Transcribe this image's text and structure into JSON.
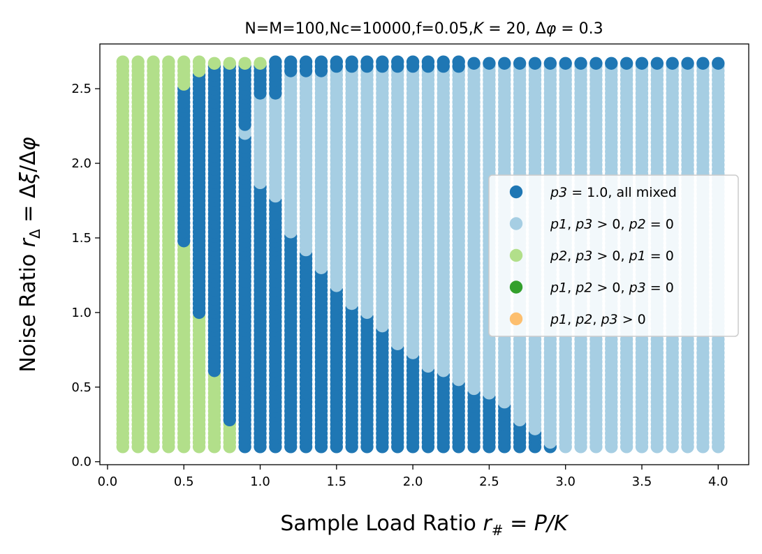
{
  "chart_data": {
    "type": "scatter",
    "title": "N=M=100,Nc=10000,f=0.05,K = 20, Δφ = 0.3",
    "xlabel": "Sample Load Ratio r# = P/K",
    "ylabel": "Noise Ratio rΔ = Δξ/Δφ",
    "xlim": [
      -0.05,
      4.2
    ],
    "ylim": [
      -0.02,
      2.8
    ],
    "xticks": [
      0.0,
      0.5,
      1.0,
      1.5,
      2.0,
      2.5,
      3.0,
      3.5,
      4.0
    ],
    "xtick_labels": [
      "0.0",
      "0.5",
      "1.0",
      "1.5",
      "2.0",
      "2.5",
      "3.0",
      "3.5",
      "4.0"
    ],
    "yticks": [
      0.0,
      0.5,
      1.0,
      1.5,
      2.0,
      2.5
    ],
    "ytick_labels": [
      "0.0",
      "0.5",
      "1.0",
      "1.5",
      "2.0",
      "2.5"
    ],
    "grid": false,
    "legend_position": "center-right",
    "x_values": {
      "start": 0.1,
      "stop": 4.0,
      "step": 0.1
    },
    "y_values": {
      "start": 0.1,
      "stop": 2.67,
      "step": 0.03
    },
    "series": [
      {
        "name": "p3 = 1.0, all mixed",
        "color": "#1f77b4"
      },
      {
        "name": "p1, p3 > 0, p2 = 0",
        "color": "#a6cee3"
      },
      {
        "name": "p2, p3 > 0, p1 = 0",
        "color": "#b2df8a"
      },
      {
        "name": "p1, p2 > 0, p3 = 0",
        "color": "#33a02c"
      },
      {
        "name": "p1, p2, p3 > 0",
        "color": "#fdbf6f"
      }
    ],
    "columns": [
      {
        "x": 0.1,
        "bands": [
          {
            "series": 2,
            "y_from": 0.1,
            "y_to": 2.67
          }
        ]
      },
      {
        "x": 0.2,
        "bands": [
          {
            "series": 2,
            "y_from": 0.1,
            "y_to": 2.67
          }
        ]
      },
      {
        "x": 0.3,
        "bands": [
          {
            "series": 2,
            "y_from": 0.1,
            "y_to": 2.67
          }
        ]
      },
      {
        "x": 0.4,
        "bands": [
          {
            "series": 2,
            "y_from": 0.1,
            "y_to": 2.67
          }
        ]
      },
      {
        "x": 0.5,
        "bands": [
          {
            "series": 2,
            "y_from": 0.1,
            "y_to": 1.45
          },
          {
            "series": 0,
            "y_from": 1.48,
            "y_to": 2.5
          },
          {
            "series": 2,
            "y_from": 2.53,
            "y_to": 2.67
          }
        ]
      },
      {
        "x": 0.6,
        "bands": [
          {
            "series": 2,
            "y_from": 0.1,
            "y_to": 0.97
          },
          {
            "series": 0,
            "y_from": 1.0,
            "y_to": 2.59
          },
          {
            "series": 2,
            "y_from": 2.62,
            "y_to": 2.67
          }
        ]
      },
      {
        "x": 0.7,
        "bands": [
          {
            "series": 2,
            "y_from": 0.1,
            "y_to": 0.58
          },
          {
            "series": 0,
            "y_from": 0.61,
            "y_to": 2.64
          },
          {
            "series": 2,
            "y_from": 2.67,
            "y_to": 2.67
          }
        ]
      },
      {
        "x": 0.8,
        "bands": [
          {
            "series": 2,
            "y_from": 0.1,
            "y_to": 0.25
          },
          {
            "series": 0,
            "y_from": 0.28,
            "y_to": 2.64
          },
          {
            "series": 2,
            "y_from": 2.67,
            "y_to": 2.67
          }
        ]
      },
      {
        "x": 0.9,
        "bands": [
          {
            "series": 0,
            "y_from": 0.1,
            "y_to": 2.17
          },
          {
            "series": 1,
            "y_from": 2.2,
            "y_to": 2.23
          },
          {
            "series": 0,
            "y_from": 2.26,
            "y_to": 2.64
          },
          {
            "series": 2,
            "y_from": 2.67,
            "y_to": 2.67
          }
        ]
      },
      {
        "x": 1.0,
        "bands": [
          {
            "series": 0,
            "y_from": 0.1,
            "y_to": 1.84
          },
          {
            "series": 1,
            "y_from": 1.87,
            "y_to": 2.44
          },
          {
            "series": 0,
            "y_from": 2.47,
            "y_to": 2.64
          },
          {
            "series": 2,
            "y_from": 2.67,
            "y_to": 2.67
          }
        ]
      },
      {
        "x": 1.1,
        "bands": [
          {
            "series": 0,
            "y_from": 0.1,
            "y_to": 1.75
          },
          {
            "series": 1,
            "y_from": 1.78,
            "y_to": 2.44
          },
          {
            "series": 0,
            "y_from": 2.47,
            "y_to": 2.67
          }
        ]
      },
      {
        "x": 1.2,
        "bands": [
          {
            "series": 0,
            "y_from": 0.1,
            "y_to": 1.51
          },
          {
            "series": 1,
            "y_from": 1.54,
            "y_to": 2.59
          },
          {
            "series": 0,
            "y_from": 2.62,
            "y_to": 2.67
          }
        ]
      },
      {
        "x": 1.3,
        "bands": [
          {
            "series": 0,
            "y_from": 0.1,
            "y_to": 1.39
          },
          {
            "series": 1,
            "y_from": 1.42,
            "y_to": 2.59
          },
          {
            "series": 0,
            "y_from": 2.62,
            "y_to": 2.67
          }
        ]
      },
      {
        "x": 1.4,
        "bands": [
          {
            "series": 0,
            "y_from": 0.1,
            "y_to": 1.27
          },
          {
            "series": 1,
            "y_from": 1.3,
            "y_to": 2.59
          },
          {
            "series": 0,
            "y_from": 2.62,
            "y_to": 2.67
          }
        ]
      },
      {
        "x": 1.5,
        "bands": [
          {
            "series": 0,
            "y_from": 0.1,
            "y_to": 1.15
          },
          {
            "series": 1,
            "y_from": 1.18,
            "y_to": 2.62
          },
          {
            "series": 0,
            "y_from": 2.65,
            "y_to": 2.67
          }
        ]
      },
      {
        "x": 1.6,
        "bands": [
          {
            "series": 0,
            "y_from": 0.1,
            "y_to": 1.03
          },
          {
            "series": 1,
            "y_from": 1.06,
            "y_to": 2.62
          },
          {
            "series": 0,
            "y_from": 2.65,
            "y_to": 2.67
          }
        ]
      },
      {
        "x": 1.7,
        "bands": [
          {
            "series": 0,
            "y_from": 0.1,
            "y_to": 0.97
          },
          {
            "series": 1,
            "y_from": 1.0,
            "y_to": 2.62
          },
          {
            "series": 0,
            "y_from": 2.65,
            "y_to": 2.67
          }
        ]
      },
      {
        "x": 1.8,
        "bands": [
          {
            "series": 0,
            "y_from": 0.1,
            "y_to": 0.88
          },
          {
            "series": 1,
            "y_from": 0.91,
            "y_to": 2.62
          },
          {
            "series": 0,
            "y_from": 2.65,
            "y_to": 2.67
          }
        ]
      },
      {
        "x": 1.9,
        "bands": [
          {
            "series": 0,
            "y_from": 0.1,
            "y_to": 0.76
          },
          {
            "series": 1,
            "y_from": 0.79,
            "y_to": 2.62
          },
          {
            "series": 0,
            "y_from": 2.65,
            "y_to": 2.67
          }
        ]
      },
      {
        "x": 2.0,
        "bands": [
          {
            "series": 0,
            "y_from": 0.1,
            "y_to": 0.7
          },
          {
            "series": 1,
            "y_from": 0.73,
            "y_to": 2.62
          },
          {
            "series": 0,
            "y_from": 2.65,
            "y_to": 2.67
          }
        ]
      },
      {
        "x": 2.1,
        "bands": [
          {
            "series": 0,
            "y_from": 0.1,
            "y_to": 0.61
          },
          {
            "series": 1,
            "y_from": 0.64,
            "y_to": 2.62
          },
          {
            "series": 0,
            "y_from": 2.65,
            "y_to": 2.67
          }
        ]
      },
      {
        "x": 2.2,
        "bands": [
          {
            "series": 0,
            "y_from": 0.1,
            "y_to": 0.58
          },
          {
            "series": 1,
            "y_from": 0.61,
            "y_to": 2.62
          },
          {
            "series": 0,
            "y_from": 2.65,
            "y_to": 2.67
          }
        ]
      },
      {
        "x": 2.3,
        "bands": [
          {
            "series": 0,
            "y_from": 0.1,
            "y_to": 0.52
          },
          {
            "series": 1,
            "y_from": 0.55,
            "y_to": 2.62
          },
          {
            "series": 0,
            "y_from": 2.65,
            "y_to": 2.67
          }
        ]
      },
      {
        "x": 2.4,
        "bands": [
          {
            "series": 0,
            "y_from": 0.1,
            "y_to": 0.46
          },
          {
            "series": 1,
            "y_from": 0.49,
            "y_to": 2.64
          },
          {
            "series": 0,
            "y_from": 2.67,
            "y_to": 2.67
          }
        ]
      },
      {
        "x": 2.5,
        "bands": [
          {
            "series": 0,
            "y_from": 0.1,
            "y_to": 0.43
          },
          {
            "series": 1,
            "y_from": 0.46,
            "y_to": 2.64
          },
          {
            "series": 0,
            "y_from": 2.67,
            "y_to": 2.67
          }
        ]
      },
      {
        "x": 2.6,
        "bands": [
          {
            "series": 0,
            "y_from": 0.1,
            "y_to": 0.37
          },
          {
            "series": 1,
            "y_from": 0.4,
            "y_to": 2.64
          },
          {
            "series": 0,
            "y_from": 2.67,
            "y_to": 2.67
          }
        ]
      },
      {
        "x": 2.7,
        "bands": [
          {
            "series": 0,
            "y_from": 0.1,
            "y_to": 0.25
          },
          {
            "series": 1,
            "y_from": 0.28,
            "y_to": 2.64
          },
          {
            "series": 0,
            "y_from": 2.67,
            "y_to": 2.67
          }
        ]
      },
      {
        "x": 2.8,
        "bands": [
          {
            "series": 0,
            "y_from": 0.1,
            "y_to": 0.19
          },
          {
            "series": 1,
            "y_from": 0.22,
            "y_to": 2.64
          },
          {
            "series": 0,
            "y_from": 2.67,
            "y_to": 2.67
          }
        ]
      },
      {
        "x": 2.9,
        "bands": [
          {
            "series": 0,
            "y_from": 0.1,
            "y_to": 0.1
          },
          {
            "series": 1,
            "y_from": 0.13,
            "y_to": 2.64
          },
          {
            "series": 0,
            "y_from": 2.67,
            "y_to": 2.67
          }
        ]
      },
      {
        "x": 3.0,
        "bands": [
          {
            "series": 1,
            "y_from": 0.1,
            "y_to": 2.64
          },
          {
            "series": 0,
            "y_from": 2.67,
            "y_to": 2.67
          }
        ]
      },
      {
        "x": 3.1,
        "bands": [
          {
            "series": 1,
            "y_from": 0.1,
            "y_to": 2.64
          },
          {
            "series": 0,
            "y_from": 2.67,
            "y_to": 2.67
          }
        ]
      },
      {
        "x": 3.2,
        "bands": [
          {
            "series": 1,
            "y_from": 0.1,
            "y_to": 2.64
          },
          {
            "series": 0,
            "y_from": 2.67,
            "y_to": 2.67
          }
        ]
      },
      {
        "x": 3.3,
        "bands": [
          {
            "series": 1,
            "y_from": 0.1,
            "y_to": 2.64
          },
          {
            "series": 0,
            "y_from": 2.67,
            "y_to": 2.67
          }
        ]
      },
      {
        "x": 3.4,
        "bands": [
          {
            "series": 1,
            "y_from": 0.1,
            "y_to": 2.64
          },
          {
            "series": 0,
            "y_from": 2.67,
            "y_to": 2.67
          }
        ]
      },
      {
        "x": 3.5,
        "bands": [
          {
            "series": 1,
            "y_from": 0.1,
            "y_to": 2.64
          },
          {
            "series": 0,
            "y_from": 2.67,
            "y_to": 2.67
          }
        ]
      },
      {
        "x": 3.6,
        "bands": [
          {
            "series": 1,
            "y_from": 0.1,
            "y_to": 2.64
          },
          {
            "series": 0,
            "y_from": 2.67,
            "y_to": 2.67
          }
        ]
      },
      {
        "x": 3.7,
        "bands": [
          {
            "series": 1,
            "y_from": 0.1,
            "y_to": 2.64
          },
          {
            "series": 0,
            "y_from": 2.67,
            "y_to": 2.67
          }
        ]
      },
      {
        "x": 3.8,
        "bands": [
          {
            "series": 1,
            "y_from": 0.1,
            "y_to": 2.64
          },
          {
            "series": 0,
            "y_from": 2.67,
            "y_to": 2.67
          }
        ]
      },
      {
        "x": 3.9,
        "bands": [
          {
            "series": 1,
            "y_from": 0.1,
            "y_to": 2.64
          },
          {
            "series": 0,
            "y_from": 2.67,
            "y_to": 2.67
          }
        ]
      },
      {
        "x": 4.0,
        "bands": [
          {
            "series": 1,
            "y_from": 0.1,
            "y_to": 2.64
          },
          {
            "series": 0,
            "y_from": 2.67,
            "y_to": 2.67
          }
        ]
      }
    ]
  }
}
